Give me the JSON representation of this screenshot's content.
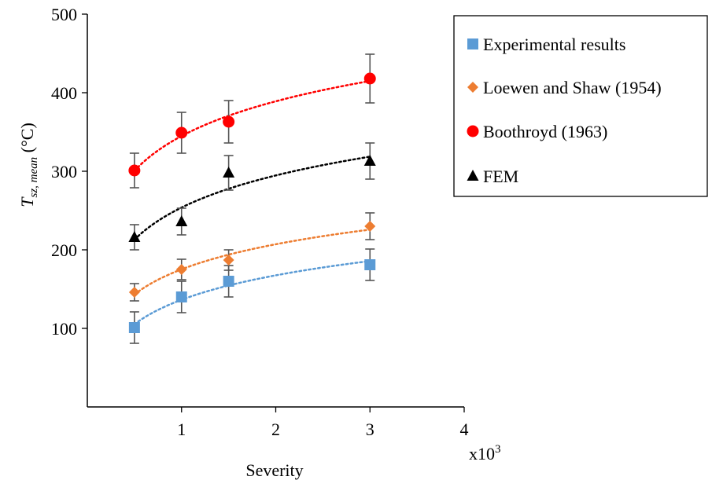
{
  "chart_data": {
    "type": "scatter",
    "ylabel_main": "T",
    "ylabel_sub": "sz, mean",
    "ylabel_unit": " (°C)",
    "xlabel": "Severity",
    "x_multiplier": "x10",
    "x_multiplier_exp": "3",
    "xlim": [
      0,
      4
    ],
    "ylim": [
      0,
      500
    ],
    "xticks": [
      {
        "v": 1,
        "label": "1"
      },
      {
        "v": 2,
        "label": "2"
      },
      {
        "v": 3,
        "label": "3"
      },
      {
        "v": 4,
        "label": "4"
      }
    ],
    "yticks": [
      {
        "v": 100,
        "label": "100"
      },
      {
        "v": 200,
        "label": "200"
      },
      {
        "v": 300,
        "label": "300"
      },
      {
        "v": 400,
        "label": "400"
      },
      {
        "v": 500,
        "label": "500"
      }
    ],
    "grid": false,
    "legend_position": "top-right",
    "series": [
      {
        "name": "Experimental results",
        "marker": "square",
        "color": "#5B9BD5",
        "x": [
          0.5,
          1,
          1.5,
          3
        ],
        "y": [
          101,
          140,
          160,
          181
        ],
        "err": [
          20,
          20,
          20,
          20
        ],
        "trend": "log"
      },
      {
        "name": "Loewen and Shaw (1954)",
        "marker": "diamond",
        "color": "#ED7D31",
        "x": [
          0.5,
          1,
          1.5,
          3
        ],
        "y": [
          146,
          175,
          187,
          230
        ],
        "err": [
          11,
          13,
          13,
          17
        ],
        "trend": "log"
      },
      {
        "name": "Boothroyd (1963)",
        "marker": "circle",
        "color": "#FF0000",
        "x": [
          0.5,
          1,
          1.5,
          3
        ],
        "y": [
          301,
          349,
          363,
          418
        ],
        "err": [
          22,
          26,
          27,
          31
        ],
        "trend": "log"
      },
      {
        "name": "FEM",
        "marker": "triangle",
        "color": "#000000",
        "x": [
          0.5,
          1,
          1.5,
          3
        ],
        "y": [
          216,
          236,
          298,
          313
        ],
        "err": [
          16,
          17,
          22,
          23
        ],
        "trend": "log"
      }
    ]
  }
}
